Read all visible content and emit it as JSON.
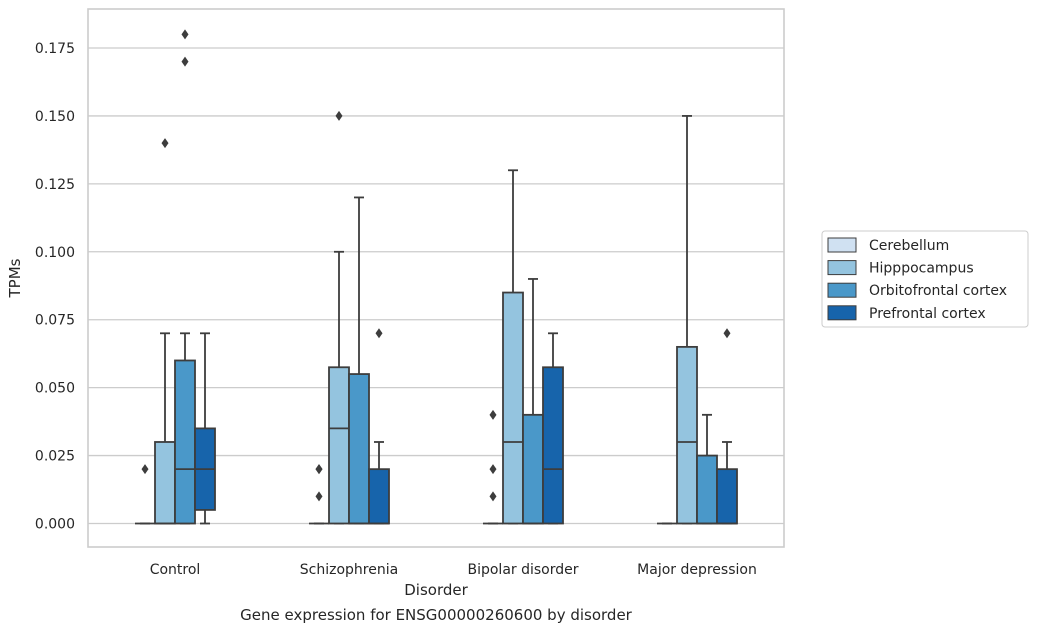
{
  "caption": "Gene expression for ENSG00000260600 by disorder",
  "colors": {
    "Cerebellum": "#d0e1f2",
    "Hipppocampus": "#94c4df",
    "Orbitofrontal cortex": "#4a98c9",
    "Prefrontal cortex": "#1764ab",
    "box_edge": "#3d3d3d",
    "grid": "#cccccc",
    "axes_frame": "#cccccc"
  },
  "chart_data": {
    "type": "box",
    "title": "",
    "xlabel": "Disorder",
    "ylabel": "TPMs",
    "ylim": [
      -0.009,
      0.19
    ],
    "yticks": [
      0.0,
      0.025,
      0.05,
      0.075,
      0.1,
      0.125,
      0.15,
      0.175
    ],
    "ytick_labels": [
      "0.000",
      "0.025",
      "0.050",
      "0.075",
      "0.100",
      "0.125",
      "0.150",
      "0.175"
    ],
    "grid": "horizontal",
    "legend_position": "right",
    "categories": [
      "Control",
      "Schizophrenia",
      "Bipolar disorder",
      "Major depression"
    ],
    "series": [
      {
        "name": "Cerebellum",
        "boxes": [
          {
            "whislo": 0.0,
            "q1": 0.0,
            "med": 0.0,
            "q3": 0.0,
            "whishi": 0.0,
            "fliers": [
              0.02
            ]
          },
          {
            "whislo": 0.0,
            "q1": 0.0,
            "med": 0.0,
            "q3": 0.0,
            "whishi": 0.0,
            "fliers": [
              0.01,
              0.02,
              0.02
            ]
          },
          {
            "whislo": 0.0,
            "q1": 0.0,
            "med": 0.0,
            "q3": 0.0,
            "whishi": 0.0,
            "fliers": [
              0.01,
              0.02,
              0.04
            ]
          },
          {
            "whislo": 0.0,
            "q1": 0.0,
            "med": 0.0,
            "q3": 0.0,
            "whishi": 0.0,
            "fliers": []
          }
        ]
      },
      {
        "name": "Hipppocampus",
        "boxes": [
          {
            "whislo": 0.0,
            "q1": 0.0,
            "med": 0.0,
            "q3": 0.03,
            "whishi": 0.07,
            "fliers": [
              0.14
            ]
          },
          {
            "whislo": 0.0,
            "q1": 0.0,
            "med": 0.035,
            "q3": 0.0575,
            "whishi": 0.1,
            "fliers": [
              0.15
            ]
          },
          {
            "whislo": 0.0,
            "q1": 0.0,
            "med": 0.03,
            "q3": 0.085,
            "whishi": 0.13,
            "fliers": []
          },
          {
            "whislo": 0.0,
            "q1": 0.0,
            "med": 0.03,
            "q3": 0.065,
            "whishi": 0.15,
            "fliers": []
          }
        ]
      },
      {
        "name": "Orbitofrontal cortex",
        "boxes": [
          {
            "whislo": 0.0,
            "q1": 0.0,
            "med": 0.02,
            "q3": 0.06,
            "whishi": 0.07,
            "fliers": [
              0.17,
              0.18
            ]
          },
          {
            "whislo": 0.0,
            "q1": 0.0,
            "med": 0.0,
            "q3": 0.055,
            "whishi": 0.12,
            "fliers": []
          },
          {
            "whislo": 0.0,
            "q1": 0.0,
            "med": 0.0,
            "q3": 0.04,
            "whishi": 0.09,
            "fliers": []
          },
          {
            "whislo": 0.0,
            "q1": 0.0,
            "med": 0.0,
            "q3": 0.025,
            "whishi": 0.04,
            "fliers": []
          }
        ]
      },
      {
        "name": "Prefrontal cortex",
        "boxes": [
          {
            "whislo": 0.0,
            "q1": 0.005,
            "med": 0.02,
            "q3": 0.035,
            "whishi": 0.07,
            "fliers": []
          },
          {
            "whislo": 0.0,
            "q1": 0.0,
            "med": 0.0,
            "q3": 0.02,
            "whishi": 0.03,
            "fliers": [
              0.07
            ]
          },
          {
            "whislo": 0.0,
            "q1": 0.0,
            "med": 0.02,
            "q3": 0.0575,
            "whishi": 0.07,
            "fliers": []
          },
          {
            "whislo": 0.0,
            "q1": 0.0,
            "med": 0.0,
            "q3": 0.02,
            "whishi": 0.03,
            "fliers": [
              0.07
            ]
          }
        ]
      }
    ]
  }
}
